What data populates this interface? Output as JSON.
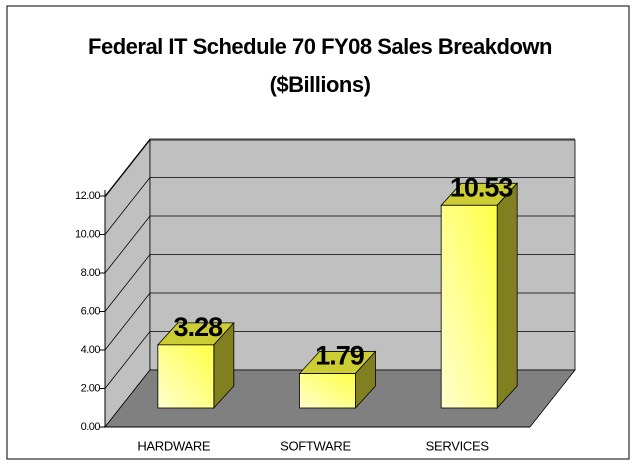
{
  "chart_data": {
    "type": "bar3d",
    "title": "Federal IT Schedule 70 FY08 Sales Breakdown",
    "subtitle": "($Billions)",
    "categories": [
      "HARDWARE",
      "SOFTWARE",
      "SERVICES"
    ],
    "values": [
      3.28,
      1.79,
      10.53
    ],
    "color": "#ffff44",
    "ylim": [
      0,
      12
    ],
    "yticks": [
      {
        "value": 0,
        "label": "0.00"
      },
      {
        "value": 2,
        "label": "2.00"
      },
      {
        "value": 4,
        "label": "4.00"
      },
      {
        "value": 6,
        "label": "6.00"
      },
      {
        "value": 8,
        "label": "8.00"
      },
      {
        "value": 10,
        "label": "10.00"
      },
      {
        "value": 12,
        "label": "12.00"
      }
    ],
    "grid": true
  }
}
